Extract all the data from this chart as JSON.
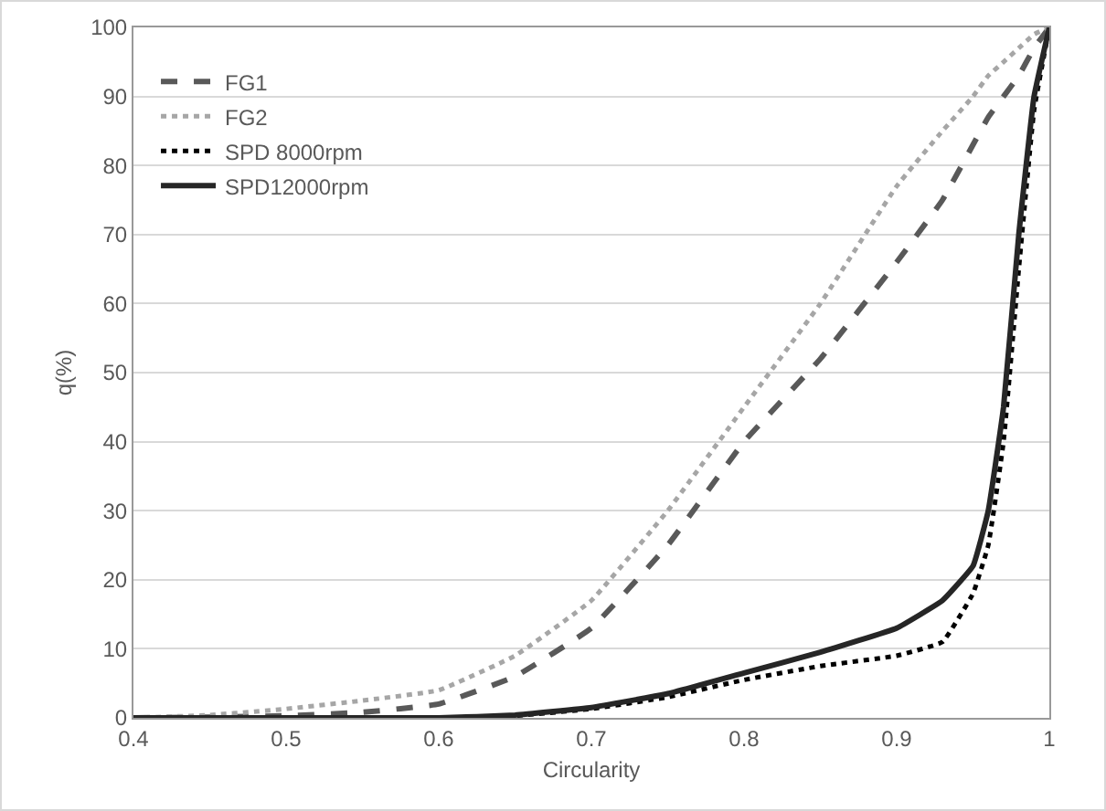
{
  "chart_data": {
    "type": "line",
    "xlabel": "Circularity",
    "ylabel": "q(%)",
    "xlim": [
      0.4,
      1
    ],
    "xticks": [
      0.4,
      0.5,
      0.6,
      0.7,
      0.8,
      0.9,
      {
        "value": 1,
        "label": "1"
      }
    ],
    "ylim": [
      0,
      100
    ],
    "yticks": [
      0,
      10,
      20,
      30,
      40,
      50,
      60,
      70,
      80,
      90,
      100
    ],
    "grid": "y",
    "legend": "top left",
    "marker": "none",
    "x": [
      0.4,
      0.45,
      0.5,
      0.55,
      0.6,
      0.65,
      0.7,
      0.75,
      0.8,
      0.85,
      0.9,
      0.93,
      0.95,
      0.96,
      0.97,
      0.98,
      0.99,
      1
    ],
    "series": [
      {
        "name": "FG1",
        "color": "#595959",
        "line_style": "dashed",
        "values": [
          0,
          0.1,
          0.3,
          0.8,
          2,
          6,
          13,
          25,
          40,
          52,
          66,
          75,
          83,
          87,
          90,
          93,
          97,
          100
        ]
      },
      {
        "name": "FG2",
        "color": "#a6a6a6",
        "line_style": "dotted",
        "values": [
          0,
          0.4,
          1.3,
          2.5,
          4,
          9,
          17,
          30,
          45,
          60,
          77,
          85,
          90,
          93,
          95,
          97,
          99,
          100
        ]
      },
      {
        "name": "SPD 8000rpm",
        "color": "#000000",
        "line_style": "dotted",
        "values": [
          0,
          0,
          0,
          0,
          0,
          0.3,
          1.3,
          3,
          5.5,
          7.5,
          9,
          11,
          18,
          25,
          40,
          65,
          88,
          100
        ]
      },
      {
        "name": "SPD12000rpm",
        "color": "#262626",
        "line_style": "solid",
        "values": [
          0,
          0,
          0,
          0,
          0,
          0.4,
          1.5,
          3.5,
          6.5,
          9.5,
          13,
          17,
          22,
          30,
          45,
          70,
          90,
          100
        ]
      }
    ]
  }
}
